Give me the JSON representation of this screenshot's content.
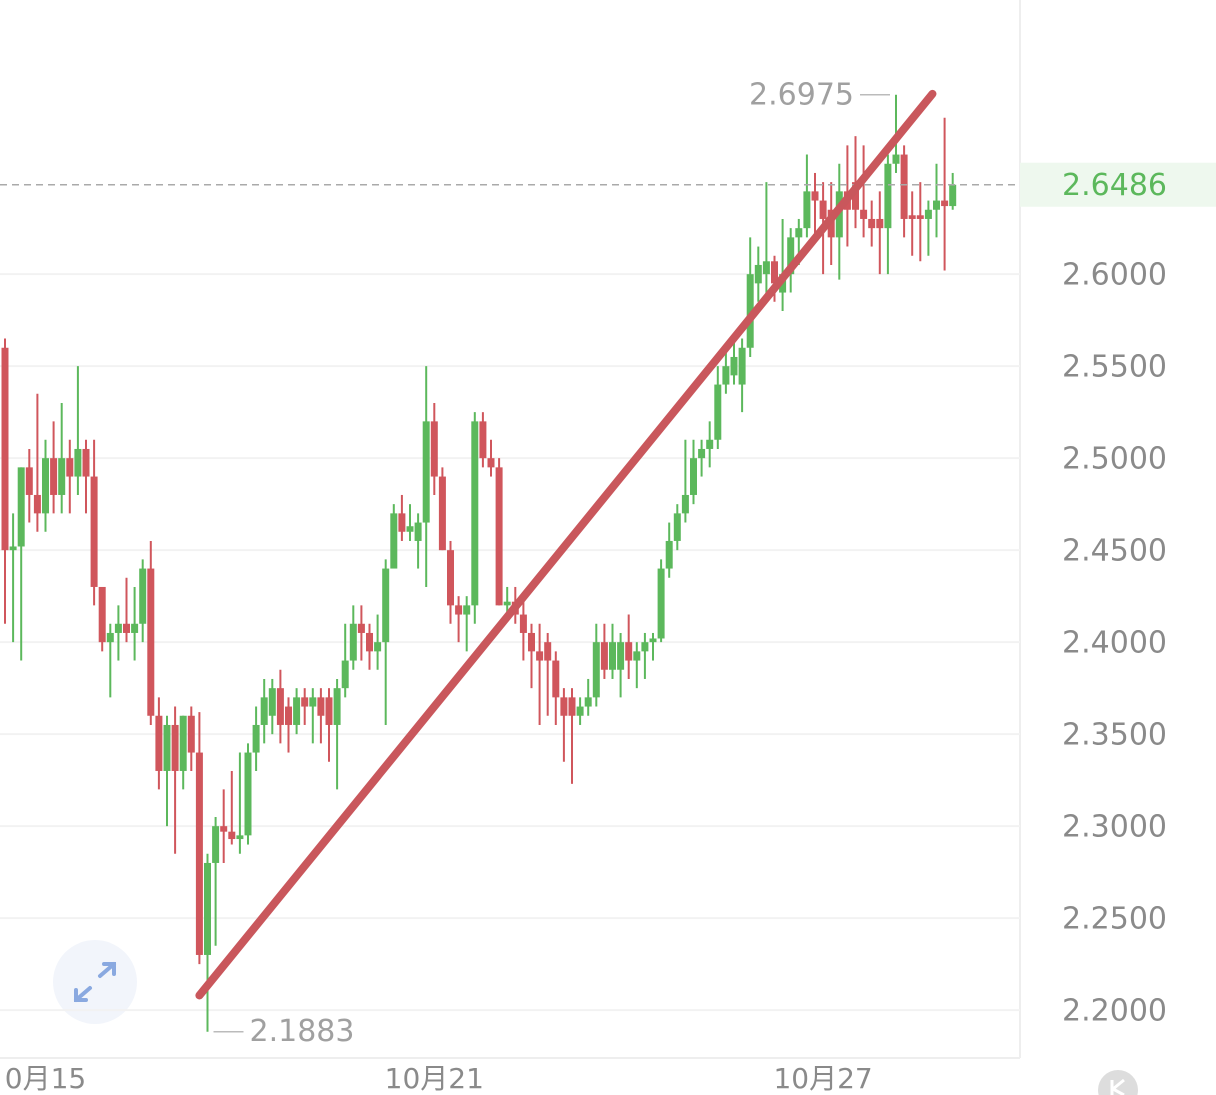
{
  "chart_data": {
    "type": "candlestick",
    "up_color": "#5cb85c",
    "down_color": "#d0565c",
    "ylim": [
      2.174,
      2.749
    ],
    "yticks": [
      {
        "value": 2.2,
        "label": "2.2000"
      },
      {
        "value": 2.25,
        "label": "2.2500"
      },
      {
        "value": 2.3,
        "label": "2.3000"
      },
      {
        "value": 2.35,
        "label": "2.3500"
      },
      {
        "value": 2.4,
        "label": "2.4000"
      },
      {
        "value": 2.45,
        "label": "2.4500"
      },
      {
        "value": 2.5,
        "label": "2.5000"
      },
      {
        "value": 2.55,
        "label": "2.5500"
      },
      {
        "value": 2.6,
        "label": "2.6000"
      }
    ],
    "grid": true,
    "xticks": [
      {
        "value": 5,
        "label": "0月15"
      },
      {
        "value": 53,
        "label": "10月21"
      },
      {
        "value": 101,
        "label": "10月27"
      }
    ],
    "last_price": 2.6486,
    "high": {
      "index": 110,
      "value": 2.6975
    },
    "low": {
      "index": 25,
      "value": 2.1883
    },
    "trendline": {
      "from": [
        24,
        2.208
      ],
      "to": [
        114.5,
        2.698
      ],
      "color": "#c9575c"
    },
    "candles": [
      [
        2.56,
        2.565,
        2.41,
        2.45
      ],
      [
        2.45,
        2.47,
        2.4,
        2.452
      ],
      [
        2.452,
        2.495,
        2.39,
        2.495
      ],
      [
        2.495,
        2.505,
        2.465,
        2.48
      ],
      [
        2.48,
        2.535,
        2.46,
        2.47
      ],
      [
        2.47,
        2.51,
        2.46,
        2.5
      ],
      [
        2.5,
        2.52,
        2.47,
        2.48
      ],
      [
        2.48,
        2.53,
        2.47,
        2.5
      ],
      [
        2.5,
        2.51,
        2.47,
        2.49
      ],
      [
        2.49,
        2.55,
        2.48,
        2.505
      ],
      [
        2.505,
        2.51,
        2.47,
        2.49
      ],
      [
        2.49,
        2.51,
        2.42,
        2.43
      ],
      [
        2.43,
        2.43,
        2.395,
        2.4
      ],
      [
        2.4,
        2.41,
        2.37,
        2.405
      ],
      [
        2.405,
        2.42,
        2.39,
        2.41
      ],
      [
        2.41,
        2.435,
        2.4,
        2.405
      ],
      [
        2.405,
        2.43,
        2.39,
        2.41
      ],
      [
        2.41,
        2.445,
        2.4,
        2.44
      ],
      [
        2.44,
        2.455,
        2.355,
        2.36
      ],
      [
        2.36,
        2.37,
        2.32,
        2.33
      ],
      [
        2.33,
        2.36,
        2.3,
        2.355
      ],
      [
        2.355,
        2.365,
        2.285,
        2.33
      ],
      [
        2.33,
        2.36,
        2.32,
        2.36
      ],
      [
        2.36,
        2.365,
        2.33,
        2.34
      ],
      [
        2.34,
        2.362,
        2.225,
        2.23
      ],
      [
        2.23,
        2.285,
        2.1883,
        2.28
      ],
      [
        2.28,
        2.305,
        2.235,
        2.3
      ],
      [
        2.3,
        2.32,
        2.28,
        2.297
      ],
      [
        2.297,
        2.33,
        2.29,
        2.293
      ],
      [
        2.293,
        2.34,
        2.285,
        2.295
      ],
      [
        2.295,
        2.345,
        2.29,
        2.34
      ],
      [
        2.34,
        2.365,
        2.33,
        2.355
      ],
      [
        2.355,
        2.38,
        2.345,
        2.37
      ],
      [
        2.36,
        2.38,
        2.35,
        2.375
      ],
      [
        2.375,
        2.385,
        2.345,
        2.355
      ],
      [
        2.365,
        2.37,
        2.34,
        2.355
      ],
      [
        2.355,
        2.375,
        2.35,
        2.37
      ],
      [
        2.37,
        2.375,
        2.355,
        2.365
      ],
      [
        2.365,
        2.375,
        2.345,
        2.37
      ],
      [
        2.37,
        2.375,
        2.345,
        2.36
      ],
      [
        2.37,
        2.375,
        2.335,
        2.355
      ],
      [
        2.355,
        2.38,
        2.32,
        2.375
      ],
      [
        2.375,
        2.41,
        2.37,
        2.39
      ],
      [
        2.39,
        2.42,
        2.385,
        2.41
      ],
      [
        2.41,
        2.42,
        2.39,
        2.405
      ],
      [
        2.405,
        2.41,
        2.385,
        2.395
      ],
      [
        2.395,
        2.415,
        2.385,
        2.4
      ],
      [
        2.4,
        2.445,
        2.355,
        2.44
      ],
      [
        2.44,
        2.475,
        2.44,
        2.47
      ],
      [
        2.47,
        2.48,
        2.455,
        2.46
      ],
      [
        2.46,
        2.475,
        2.455,
        2.463
      ],
      [
        2.455,
        2.47,
        2.44,
        2.465
      ],
      [
        2.465,
        2.55,
        2.43,
        2.52
      ],
      [
        2.52,
        2.53,
        2.48,
        2.49
      ],
      [
        2.49,
        2.495,
        2.45,
        2.45
      ],
      [
        2.45,
        2.455,
        2.41,
        2.42
      ],
      [
        2.42,
        2.425,
        2.4,
        2.415
      ],
      [
        2.415,
        2.425,
        2.395,
        2.42
      ],
      [
        2.42,
        2.525,
        2.41,
        2.52
      ],
      [
        2.52,
        2.525,
        2.495,
        2.5
      ],
      [
        2.5,
        2.51,
        2.49,
        2.495
      ],
      [
        2.495,
        2.5,
        2.42,
        2.42
      ],
      [
        2.42,
        2.43,
        2.415,
        2.422
      ],
      [
        2.422,
        2.43,
        2.41,
        2.415
      ],
      [
        2.415,
        2.425,
        2.39,
        2.405
      ],
      [
        2.405,
        2.41,
        2.375,
        2.395
      ],
      [
        2.395,
        2.41,
        2.355,
        2.39
      ],
      [
        2.4,
        2.405,
        2.36,
        2.39
      ],
      [
        2.39,
        2.395,
        2.355,
        2.37
      ],
      [
        2.37,
        2.375,
        2.335,
        2.36
      ],
      [
        2.37,
        2.375,
        2.323,
        2.36
      ],
      [
        2.36,
        2.37,
        2.355,
        2.365
      ],
      [
        2.365,
        2.38,
        2.36,
        2.37
      ],
      [
        2.37,
        2.41,
        2.365,
        2.4
      ],
      [
        2.4,
        2.41,
        2.38,
        2.385
      ],
      [
        2.385,
        2.41,
        2.38,
        2.4
      ],
      [
        2.385,
        2.405,
        2.37,
        2.4
      ],
      [
        2.4,
        2.415,
        2.38,
        2.39
      ],
      [
        2.39,
        2.4,
        2.375,
        2.395
      ],
      [
        2.395,
        2.405,
        2.38,
        2.4
      ],
      [
        2.4,
        2.405,
        2.39,
        2.402
      ],
      [
        2.402,
        2.445,
        2.4,
        2.44
      ],
      [
        2.44,
        2.465,
        2.435,
        2.455
      ],
      [
        2.455,
        2.475,
        2.45,
        2.47
      ],
      [
        2.47,
        2.51,
        2.465,
        2.48
      ],
      [
        2.48,
        2.51,
        2.475,
        2.5
      ],
      [
        2.5,
        2.51,
        2.49,
        2.505
      ],
      [
        2.505,
        2.52,
        2.495,
        2.51
      ],
      [
        2.51,
        2.55,
        2.505,
        2.54
      ],
      [
        2.54,
        2.56,
        2.535,
        2.55
      ],
      [
        2.545,
        2.565,
        2.54,
        2.555
      ],
      [
        2.54,
        2.565,
        2.525,
        2.56
      ],
      [
        2.56,
        2.62,
        2.555,
        2.6
      ],
      [
        2.595,
        2.615,
        2.585,
        2.605
      ],
      [
        2.6,
        2.65,
        2.585,
        2.607
      ],
      [
        2.607,
        2.61,
        2.585,
        2.595
      ],
      [
        2.59,
        2.63,
        2.58,
        2.6
      ],
      [
        2.6,
        2.625,
        2.59,
        2.62
      ],
      [
        2.62,
        2.63,
        2.605,
        2.625
      ],
      [
        2.625,
        2.665,
        2.62,
        2.645
      ],
      [
        2.645,
        2.655,
        2.62,
        2.64
      ],
      [
        2.64,
        2.65,
        2.6,
        2.63
      ],
      [
        2.635,
        2.65,
        2.605,
        2.62
      ],
      [
        2.62,
        2.66,
        2.597,
        2.645
      ],
      [
        2.645,
        2.67,
        2.615,
        2.635
      ],
      [
        2.65,
        2.675,
        2.625,
        2.635
      ],
      [
        2.635,
        2.67,
        2.62,
        2.63
      ],
      [
        2.63,
        2.64,
        2.615,
        2.625
      ],
      [
        2.63,
        2.645,
        2.6,
        2.625
      ],
      [
        2.625,
        2.665,
        2.6,
        2.66
      ],
      [
        2.66,
        2.6975,
        2.655,
        2.665
      ],
      [
        2.665,
        2.67,
        2.62,
        2.63
      ],
      [
        2.632,
        2.645,
        2.61,
        2.63
      ],
      [
        2.632,
        2.65,
        2.607,
        2.63
      ],
      [
        2.63,
        2.64,
        2.61,
        2.635
      ],
      [
        2.635,
        2.66,
        2.62,
        2.64
      ],
      [
        2.64,
        2.685,
        2.602,
        2.637
      ],
      [
        2.637,
        2.655,
        2.635,
        2.6486
      ]
    ]
  }
}
